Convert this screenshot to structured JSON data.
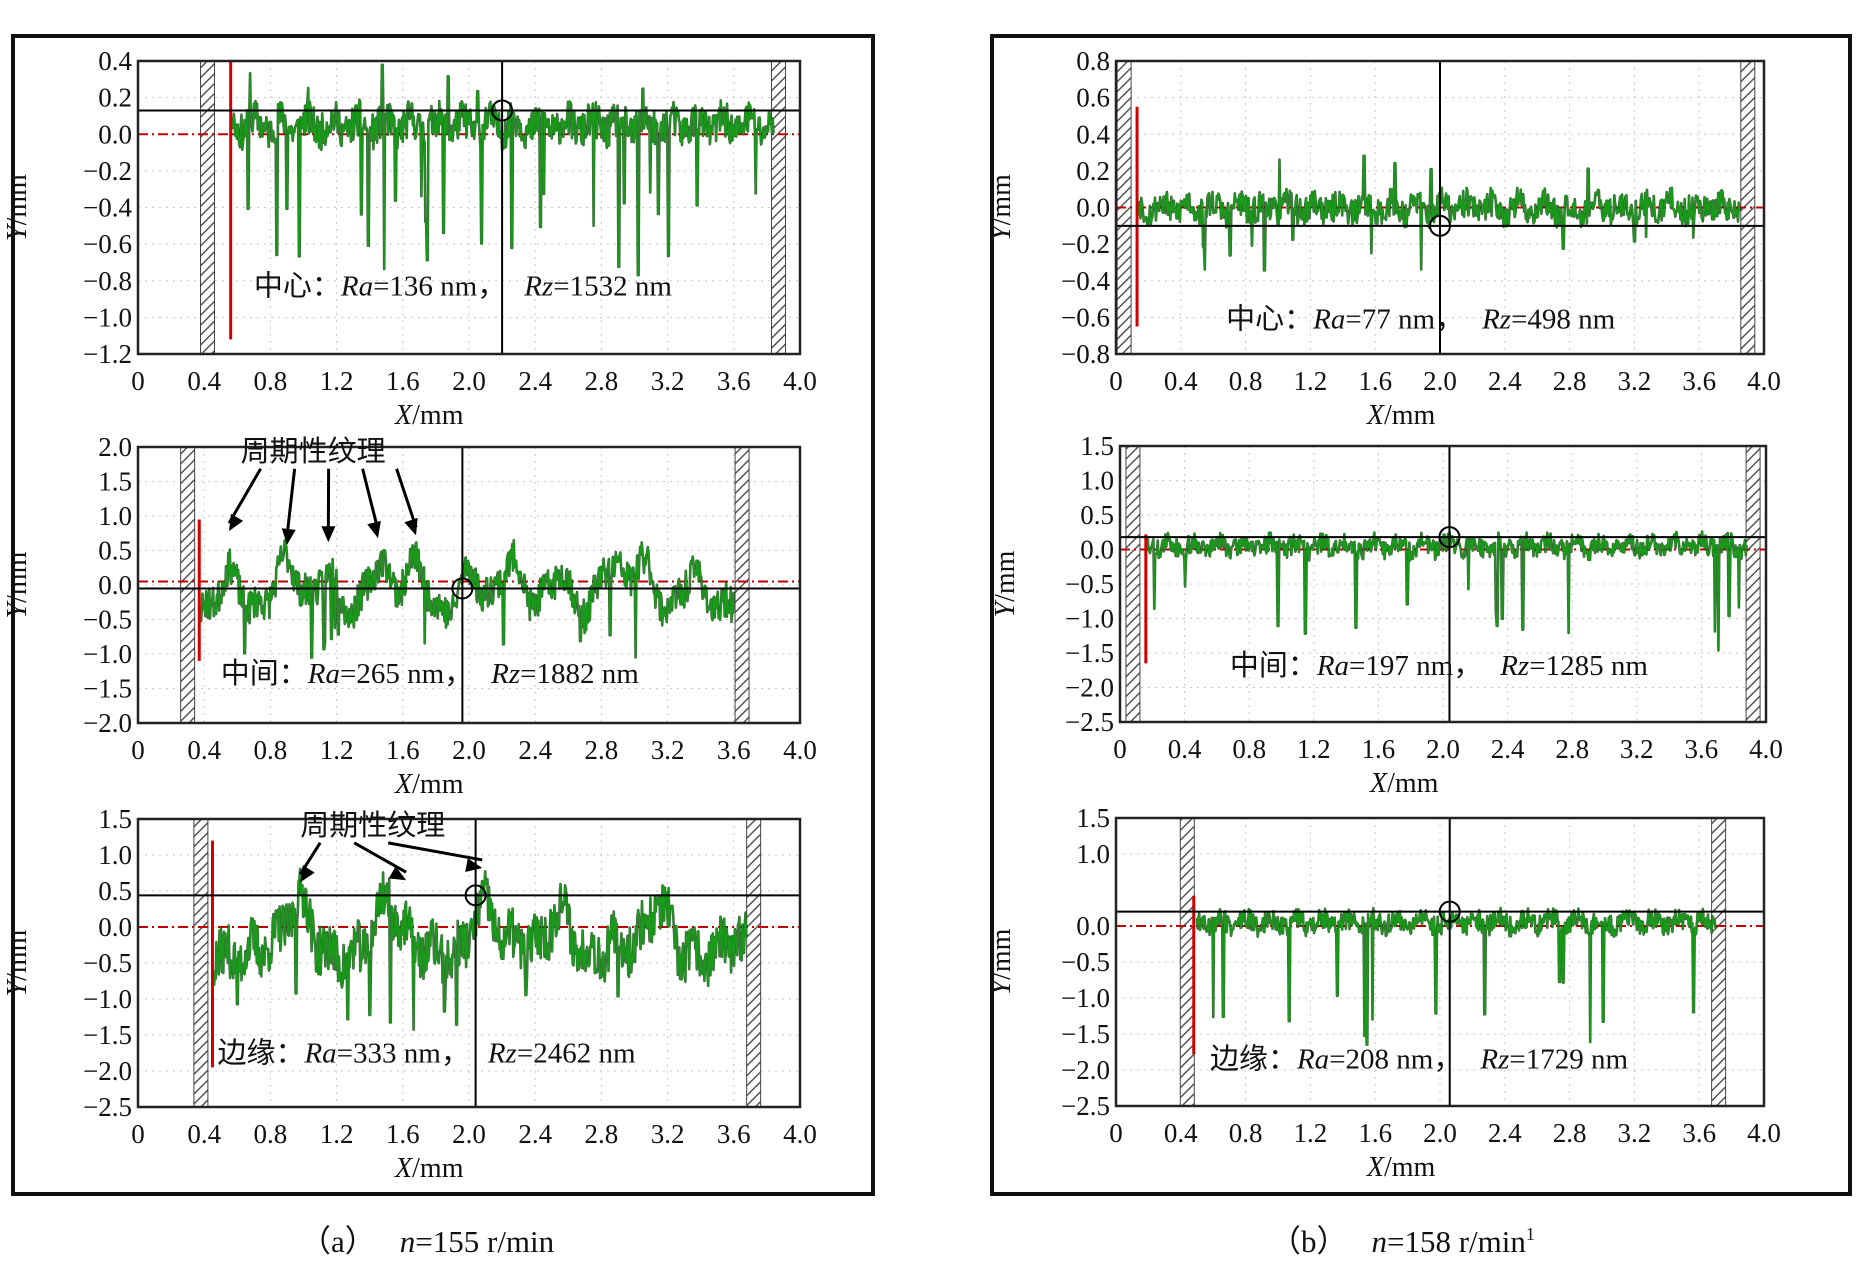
{
  "captions": {
    "a": {
      "label": "（a）",
      "var": "n",
      "value": "=155 r/min"
    },
    "b": {
      "label": "（b）",
      "var": "n",
      "value": "=158 r/min",
      "sup": "1"
    }
  },
  "colors": {
    "profile": "#1a9a1a",
    "zero_line": "#c00000",
    "cursor": "#000000",
    "hatch": "#555555"
  },
  "chart_data": [
    {
      "id": "a1",
      "type": "line",
      "group": "a",
      "xlabel_var": "X",
      "xlabel_unit": "/mm",
      "ylabel_var": "Y",
      "ylabel_unit": "/mm",
      "xlim": [
        0,
        4.0
      ],
      "ylim": [
        -1.2,
        0.4
      ],
      "xticks": [
        "0",
        "0.4",
        "0.8",
        "1.2",
        "1.6",
        "2.0",
        "2.4",
        "2.8",
        "3.2",
        "3.6",
        "4.0"
      ],
      "yticks": [
        "0.4",
        "0.2",
        "0.0",
        "−0.2",
        "−0.4",
        "−0.6",
        "−0.8",
        "−1.0",
        "−1.2"
      ],
      "ytick_values": [
        0.4,
        0.2,
        0.0,
        -0.2,
        -0.4,
        -0.6,
        -0.8,
        -1.0,
        -1.2
      ],
      "zero_y": 0.0,
      "cursor_x": 2.2,
      "cursor_y": 0.13,
      "hatch_left_x": 0.42,
      "hatch_right_x": 3.87,
      "red_marker": {
        "x": 0.56,
        "y_top": 0.4,
        "y_bottom": -1.12
      },
      "profile": {
        "x_start": 0.56,
        "x_end": 3.84,
        "baseline": 0.05,
        "amp": 0.1,
        "n_spikes": 26,
        "spike_min": -0.3,
        "spike_max": -0.8,
        "n_peaks": 6,
        "peak_max": 0.38,
        "seed": 11,
        "waves": []
      },
      "label": {
        "prefix": "中心：",
        "ra_var": "Ra",
        "ra_val": "=136 nm，",
        "rz_var": "Rz",
        "rz_val": "=1532 nm",
        "x": 0.7,
        "y": -0.88
      },
      "texture": null
    },
    {
      "id": "a2",
      "type": "line",
      "group": "a",
      "xlabel_var": "X",
      "xlabel_unit": "/mm",
      "ylabel_var": "Y",
      "ylabel_unit": "/mm",
      "xlim": [
        0,
        4.0
      ],
      "ylim": [
        -2.0,
        2.0
      ],
      "xticks": [
        "0",
        "0.4",
        "0.8",
        "1.2",
        "1.6",
        "2.0",
        "2.4",
        "2.8",
        "3.2",
        "3.6",
        "4.0"
      ],
      "yticks": [
        "2.0",
        "1.5",
        "1.0",
        "0.5",
        "0.0",
        "−0.5",
        "−1.0",
        "−1.5",
        "−2.0"
      ],
      "ytick_values": [
        2.0,
        1.5,
        1.0,
        0.5,
        0.0,
        -0.5,
        -1.0,
        -1.5,
        -2.0
      ],
      "zero_y": 0.05,
      "cursor_x": 1.96,
      "cursor_y": -0.05,
      "hatch_left_x": 0.3,
      "hatch_right_x": 3.65,
      "red_marker": {
        "x": 0.37,
        "y_top": 0.95,
        "y_bottom": -1.1
      },
      "profile": {
        "x_start": 0.38,
        "x_end": 3.6,
        "baseline": -0.05,
        "amp": 0.25,
        "n_spikes": 14,
        "spike_min": -0.6,
        "spike_max": -1.1,
        "n_peaks": 0,
        "peak_max": 0.9,
        "seed": 23,
        "waves": [
          0.55,
          0.9,
          1.15,
          1.45,
          1.68,
          2.0,
          2.25,
          2.55,
          2.85,
          3.05,
          3.35
        ]
      },
      "label": {
        "prefix": "中间：",
        "ra_var": "Ra",
        "ra_val": "=265 nm，",
        "rz_var": "Rz",
        "rz_val": "=1882 nm",
        "x": 0.5,
        "y": -1.42
      },
      "texture": {
        "text": "周期性纹理",
        "x": 0.62,
        "y": 1.8,
        "arrow_to": [
          [
            0.55,
            0.78
          ],
          [
            0.9,
            0.58
          ],
          [
            1.15,
            0.62
          ],
          [
            1.45,
            0.68
          ],
          [
            1.68,
            0.72
          ]
        ]
      }
    },
    {
      "id": "a3",
      "type": "line",
      "group": "a",
      "xlabel_var": "X",
      "xlabel_unit": "/mm",
      "ylabel_var": "Y",
      "ylabel_unit": "/mm",
      "xlim": [
        0,
        4.0
      ],
      "ylim": [
        -2.5,
        1.5
      ],
      "xticks": [
        "0",
        "0.4",
        "0.8",
        "1.2",
        "1.6",
        "2.0",
        "2.4",
        "2.8",
        "3.2",
        "3.6",
        "4.0"
      ],
      "yticks": [
        "1.5",
        "1.0",
        "0.5",
        "0.0",
        "−0.5",
        "−1.0",
        "−1.5",
        "−2.0",
        "−2.5"
      ],
      "ytick_values": [
        1.5,
        1.0,
        0.5,
        0.0,
        -0.5,
        -1.0,
        -1.5,
        -2.0,
        -2.5
      ],
      "zero_y": 0.0,
      "cursor_x": 2.04,
      "cursor_y": 0.44,
      "hatch_left_x": 0.38,
      "hatch_right_x": 3.72,
      "red_marker": {
        "x": 0.45,
        "y_top": 1.2,
        "y_bottom": -1.95
      },
      "profile": {
        "x_start": 0.46,
        "x_end": 3.68,
        "baseline": 0.0,
        "amp": 0.35,
        "n_spikes": 10,
        "spike_min": -0.9,
        "spike_max": -1.5,
        "n_peaks": 0,
        "peak_max": 1.2,
        "seed": 37,
        "waves": [
          0.98,
          1.5,
          2.08,
          2.55,
          3.15
        ]
      },
      "label": {
        "prefix": "边缘：",
        "ra_var": "Ra",
        "ra_val": "=333 nm，",
        "rz_var": "Rz",
        "rz_val": "=2462 nm",
        "x": 0.48,
        "y": -1.88
      },
      "texture": {
        "text": "周期性纹理",
        "x": 0.98,
        "y": 1.28,
        "arrow_to": [
          [
            0.98,
            0.62
          ],
          [
            1.62,
            0.65
          ],
          [
            2.08,
            0.82
          ]
        ]
      }
    },
    {
      "id": "b1",
      "type": "line",
      "group": "b",
      "xlabel_var": "X",
      "xlabel_unit": "/mm",
      "ylabel_var": "Y",
      "ylabel_unit": "/mm",
      "xlim": [
        0,
        4.0
      ],
      "ylim": [
        -0.8,
        0.8
      ],
      "xticks": [
        "0",
        "0.4",
        "0.8",
        "1.2",
        "1.6",
        "2.0",
        "2.4",
        "2.8",
        "3.2",
        "3.6",
        "4.0"
      ],
      "yticks": [
        "0.8",
        "0.6",
        "0.4",
        "0.2",
        "0.0",
        "−0.2",
        "−0.4",
        "−0.6",
        "−0.8"
      ],
      "ytick_values": [
        0.8,
        0.6,
        0.4,
        0.2,
        0.0,
        -0.2,
        -0.4,
        -0.6,
        -0.8
      ],
      "zero_y": 0.0,
      "cursor_x": 2.0,
      "cursor_y": -0.1,
      "hatch_left_x": 0.05,
      "hatch_right_x": 3.9,
      "red_marker": {
        "x": 0.13,
        "y_top": 0.55,
        "y_bottom": -0.65
      },
      "profile": {
        "x_start": 0.14,
        "x_end": 3.85,
        "baseline": 0.0,
        "amp": 0.08,
        "n_spikes": 12,
        "spike_min": -0.15,
        "spike_max": -0.45,
        "n_peaks": 5,
        "peak_max": 0.3,
        "seed": 53,
        "waves": []
      },
      "label": {
        "prefix": "中心：",
        "ra_var": "Ra",
        "ra_val": "=77 nm，",
        "rz_var": "Rz",
        "rz_val": "=498 nm",
        "x": 0.68,
        "y": -0.66
      },
      "texture": null
    },
    {
      "id": "b2",
      "type": "line",
      "group": "b",
      "xlabel_var": "X",
      "xlabel_unit": "/mm",
      "ylabel_var": "Y",
      "ylabel_unit": "/mm",
      "xlim": [
        0,
        4.0
      ],
      "ylim": [
        -2.5,
        1.5
      ],
      "xticks": [
        "0",
        "0.4",
        "0.8",
        "1.2",
        "1.6",
        "2.0",
        "2.4",
        "2.8",
        "3.2",
        "3.6",
        "4.0"
      ],
      "yticks": [
        "1.5",
        "1.0",
        "0.5",
        "0.0",
        "−0.5",
        "−1.0",
        "−1.5",
        "−2.0",
        "−2.5"
      ],
      "ytick_values": [
        1.5,
        1.0,
        0.5,
        0.0,
        -0.5,
        -1.0,
        -1.5,
        -2.0,
        -2.5
      ],
      "zero_y": 0.0,
      "cursor_x": 2.04,
      "cursor_y": 0.18,
      "hatch_left_x": 0.08,
      "hatch_right_x": 3.92,
      "red_marker": {
        "x": 0.16,
        "y_top": 0.22,
        "y_bottom": -1.65
      },
      "profile": {
        "x_start": 0.17,
        "x_end": 3.88,
        "baseline": 0.05,
        "amp": 0.15,
        "n_spikes": 16,
        "spike_min": -0.5,
        "spike_max": -1.5,
        "n_peaks": 0,
        "peak_max": 0.4,
        "seed": 71,
        "waves": []
      },
      "label": {
        "prefix": "中间：",
        "ra_var": "Ra",
        "ra_val": "=197 nm，",
        "rz_var": "Rz",
        "rz_val": "=1285 nm",
        "x": 0.68,
        "y": -1.82
      },
      "texture": null
    },
    {
      "id": "b3",
      "type": "line",
      "group": "b",
      "xlabel_var": "X",
      "xlabel_unit": "/mm",
      "ylabel_var": "Y",
      "ylabel_unit": "/mm",
      "xlim": [
        0,
        4.0
      ],
      "ylim": [
        -2.5,
        1.5
      ],
      "xticks": [
        "0",
        "0.4",
        "0.8",
        "1.2",
        "1.6",
        "2.0",
        "2.4",
        "2.8",
        "3.2",
        "3.6",
        "4.0"
      ],
      "yticks": [
        "1.5",
        "1.0",
        "0.0",
        "−0.5",
        "−1.0",
        "−1.5",
        "−2.0",
        "−2.5"
      ],
      "ytick_values": [
        1.5,
        1.0,
        0.0,
        -0.5,
        -1.0,
        -1.5,
        -2.0,
        -2.5
      ],
      "zero_y": 0.0,
      "cursor_x": 2.06,
      "cursor_y": 0.2,
      "hatch_left_x": 0.44,
      "hatch_right_x": 3.72,
      "red_marker": {
        "x": 0.48,
        "y_top": 0.42,
        "y_bottom": -1.78
      },
      "profile": {
        "x_start": 0.5,
        "x_end": 3.7,
        "baseline": 0.05,
        "amp": 0.15,
        "n_spikes": 14,
        "spike_min": -0.6,
        "spike_max": -1.65,
        "n_peaks": 0,
        "peak_max": 0.3,
        "seed": 89,
        "waves": []
      },
      "label": {
        "prefix": "边缘：",
        "ra_var": "Ra",
        "ra_val": "=208 nm，",
        "rz_var": "Rz",
        "rz_val": "=1729 nm",
        "x": 0.58,
        "y": -1.98
      },
      "texture": null
    }
  ]
}
